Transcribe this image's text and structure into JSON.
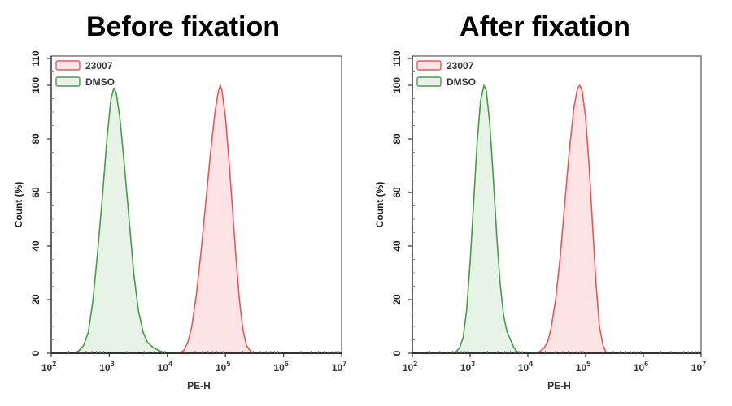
{
  "chart_data": [
    {
      "type": "area",
      "title": "Before fixation",
      "xlabel": "PE-H",
      "ylabel": "Count (%)",
      "xscale": "log",
      "xlim": [
        100,
        10000000
      ],
      "ylim": [
        0,
        110
      ],
      "xticks": [
        {
          "base": "10",
          "exp": "2"
        },
        {
          "base": "10",
          "exp": "3"
        },
        {
          "base": "10",
          "exp": "4"
        },
        {
          "base": "10",
          "exp": "5"
        },
        {
          "base": "10",
          "exp": "6"
        },
        {
          "base": "10",
          "exp": "7"
        }
      ],
      "yticks": [
        "0",
        "20",
        "40",
        "60",
        "80",
        "100",
        "110"
      ],
      "legend": {
        "position": "upper-left",
        "entries": [
          "23007",
          "DMSO"
        ]
      },
      "grid": false,
      "series": [
        {
          "name": "23007",
          "color": "#e05a5a",
          "fill": "#fde3e4",
          "peak_PE_H": 80000,
          "points_log10x_count": [
            [
              4.2,
              0
            ],
            [
              4.28,
              1
            ],
            [
              4.35,
              4
            ],
            [
              4.42,
              10
            ],
            [
              4.5,
              22
            ],
            [
              4.58,
              38
            ],
            [
              4.66,
              56
            ],
            [
              4.74,
              74
            ],
            [
              4.82,
              90
            ],
            [
              4.88,
              98
            ],
            [
              4.91,
              100
            ],
            [
              4.94,
              98
            ],
            [
              5.0,
              88
            ],
            [
              5.06,
              72
            ],
            [
              5.12,
              54
            ],
            [
              5.18,
              36
            ],
            [
              5.24,
              20
            ],
            [
              5.3,
              9
            ],
            [
              5.36,
              3
            ],
            [
              5.42,
              1
            ],
            [
              5.48,
              0
            ]
          ]
        },
        {
          "name": "DMSO",
          "color": "#4a9a4a",
          "fill": "#e6f3e6",
          "peak_PE_H": 1200,
          "points_log10x_count": [
            [
              2.4,
              0
            ],
            [
              2.48,
              1
            ],
            [
              2.56,
              3
            ],
            [
              2.64,
              8
            ],
            [
              2.72,
              20
            ],
            [
              2.8,
              38
            ],
            [
              2.88,
              58
            ],
            [
              2.96,
              80
            ],
            [
              3.03,
              95
            ],
            [
              3.08,
              99
            ],
            [
              3.12,
              97
            ],
            [
              3.18,
              88
            ],
            [
              3.26,
              70
            ],
            [
              3.34,
              50
            ],
            [
              3.42,
              30
            ],
            [
              3.5,
              16
            ],
            [
              3.58,
              8
            ],
            [
              3.66,
              4
            ],
            [
              3.76,
              2
            ],
            [
              3.86,
              1
            ],
            [
              3.96,
              0
            ]
          ]
        }
      ]
    },
    {
      "type": "area",
      "title": "After fixation",
      "xlabel": "PE-H",
      "ylabel": "Count (%)",
      "xscale": "log",
      "xlim": [
        100,
        10000000
      ],
      "ylim": [
        0,
        110
      ],
      "xticks": [
        {
          "base": "10",
          "exp": "2"
        },
        {
          "base": "10",
          "exp": "3"
        },
        {
          "base": "10",
          "exp": "4"
        },
        {
          "base": "10",
          "exp": "5"
        },
        {
          "base": "10",
          "exp": "6"
        },
        {
          "base": "10",
          "exp": "7"
        }
      ],
      "yticks": [
        "0",
        "20",
        "40",
        "60",
        "80",
        "100",
        "110"
      ],
      "legend": {
        "position": "upper-left",
        "entries": [
          "23007",
          "DMSO"
        ]
      },
      "grid": false,
      "series": [
        {
          "name": "23007",
          "color": "#e05a5a",
          "fill": "#fde3e4",
          "peak_PE_H": 85000,
          "points_log10x_count": [
            [
              2.2,
              0
            ],
            [
              2.25,
              0.5
            ],
            [
              2.3,
              0
            ],
            [
              4.1,
              0
            ],
            [
              4.2,
              0.5
            ],
            [
              4.28,
              2
            ],
            [
              4.34,
              4
            ],
            [
              4.4,
              9
            ],
            [
              4.48,
              20
            ],
            [
              4.56,
              36
            ],
            [
              4.64,
              56
            ],
            [
              4.72,
              76
            ],
            [
              4.8,
              92
            ],
            [
              4.86,
              99
            ],
            [
              4.9,
              100
            ],
            [
              4.94,
              98
            ],
            [
              5.0,
              88
            ],
            [
              5.06,
              70
            ],
            [
              5.12,
              48
            ],
            [
              5.18,
              26
            ],
            [
              5.24,
              10
            ],
            [
              5.3,
              3
            ],
            [
              5.36,
              0
            ]
          ]
        },
        {
          "name": "DMSO",
          "color": "#4a9a4a",
          "fill": "#e6f3e6",
          "peak_PE_H": 1800,
          "points_log10x_count": [
            [
              2.65,
              0
            ],
            [
              2.75,
              0.5
            ],
            [
              2.82,
              2
            ],
            [
              2.88,
              6
            ],
            [
              2.94,
              16
            ],
            [
              3.0,
              34
            ],
            [
              3.06,
              56
            ],
            [
              3.12,
              78
            ],
            [
              3.18,
              94
            ],
            [
              3.24,
              100
            ],
            [
              3.28,
              98
            ],
            [
              3.34,
              86
            ],
            [
              3.4,
              66
            ],
            [
              3.46,
              44
            ],
            [
              3.52,
              26
            ],
            [
              3.58,
              14
            ],
            [
              3.64,
              8
            ],
            [
              3.7,
              5
            ],
            [
              3.76,
              2
            ],
            [
              3.82,
              0.5
            ],
            [
              3.9,
              0
            ]
          ]
        }
      ]
    }
  ]
}
